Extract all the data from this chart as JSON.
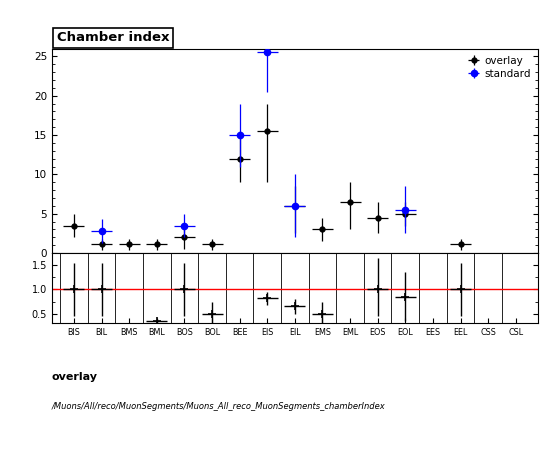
{
  "categories": [
    "BIS",
    "BIL",
    "BMS",
    "BML",
    "BOS",
    "BOL",
    "BEE",
    "EIS",
    "EIL",
    "EMS",
    "EML",
    "EOS",
    "EOL",
    "EES",
    "EEL",
    "CSS",
    "CSL"
  ],
  "overlay_y": [
    3.5,
    1.1,
    1.1,
    1.1,
    2.0,
    1.1,
    12.0,
    15.5,
    6.0,
    3.0,
    6.5,
    4.5,
    5.0,
    null,
    1.1,
    null,
    null
  ],
  "overlay_yerr_lo": [
    1.5,
    0.7,
    0.7,
    0.7,
    1.5,
    0.7,
    3.0,
    6.5,
    3.5,
    1.5,
    3.5,
    2.0,
    1.5,
    null,
    0.7,
    null,
    null
  ],
  "overlay_yerr_hi": [
    1.5,
    0.7,
    0.7,
    0.7,
    1.5,
    0.7,
    3.5,
    3.5,
    2.5,
    1.5,
    2.5,
    2.0,
    1.5,
    null,
    0.7,
    null,
    null
  ],
  "standard_y": [
    null,
    2.8,
    null,
    null,
    3.5,
    null,
    15.0,
    25.5,
    6.0,
    null,
    null,
    null,
    5.5,
    null,
    null,
    null,
    null
  ],
  "standard_yerr_lo": [
    null,
    1.5,
    null,
    null,
    1.5,
    null,
    4.0,
    5.0,
    4.0,
    null,
    null,
    null,
    3.0,
    null,
    null,
    null,
    null
  ],
  "standard_yerr_hi": [
    null,
    1.5,
    null,
    null,
    1.5,
    null,
    4.0,
    5.5,
    4.0,
    null,
    null,
    null,
    3.0,
    null,
    null,
    null,
    null
  ],
  "ratio_y": [
    1.0,
    1.0,
    null,
    0.35,
    1.0,
    0.5,
    null,
    0.82,
    0.65,
    0.5,
    null,
    1.0,
    0.85,
    null,
    1.0,
    null,
    null
  ],
  "ratio_yerr_lo": [
    0.55,
    0.55,
    null,
    0.15,
    0.55,
    0.25,
    null,
    0.15,
    0.15,
    0.25,
    null,
    0.55,
    0.5,
    null,
    0.55,
    null,
    null
  ],
  "ratio_yerr_hi": [
    0.55,
    0.55,
    null,
    0.05,
    0.55,
    0.25,
    null,
    0.12,
    0.15,
    0.25,
    null,
    0.65,
    0.5,
    null,
    0.55,
    null,
    null
  ],
  "xerr": 0.38,
  "title": "Chamber index",
  "overlay_color": "black",
  "standard_color": "blue",
  "ratio_line_color": "red",
  "xlabel_bottom": "/Muons/All/reco/MuonSegments/Muons_All_reco_MuonSegments_chamberIndex",
  "text_overlay": "overlay",
  "main_ylim": [
    0,
    26
  ],
  "ratio_ylim": [
    0.3,
    1.75
  ],
  "ratio_yticks": [
    0.5,
    1.0,
    1.5
  ],
  "background_color": "white"
}
